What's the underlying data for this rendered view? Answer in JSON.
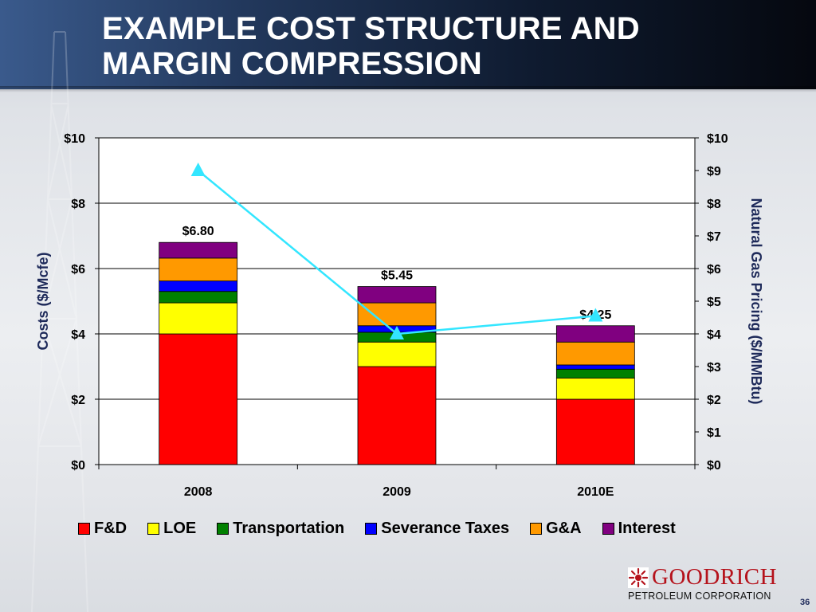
{
  "slide": {
    "title_line1": "EXAMPLE COST STRUCTURE AND",
    "title_line2": "MARGIN COMPRESSION",
    "page_number": "36"
  },
  "logo": {
    "name": "GOODRICH",
    "subtitle": "PETROLEUM CORPORATION",
    "icon": "sun-burst-icon"
  },
  "chart_data": {
    "type": "bar",
    "stacked": true,
    "categories": [
      "2008",
      "2009",
      "2010E"
    ],
    "series": [
      {
        "name": "F&D",
        "color": "#ff0000",
        "values": [
          4.0,
          3.0,
          2.0
        ]
      },
      {
        "name": "LOE",
        "color": "#ffff00",
        "values": [
          0.95,
          0.75,
          0.65
        ]
      },
      {
        "name": "Transportation",
        "color": "#008000",
        "values": [
          0.35,
          0.3,
          0.27
        ]
      },
      {
        "name": "Severance Taxes",
        "color": "#0000ff",
        "values": [
          0.32,
          0.2,
          0.13
        ]
      },
      {
        "name": "G&A",
        "color": "#ff9900",
        "values": [
          0.7,
          0.7,
          0.7
        ]
      },
      {
        "name": "Interest",
        "color": "#800080",
        "values": [
          0.48,
          0.5,
          0.5
        ]
      }
    ],
    "totals_labels": [
      "$6.80",
      "$5.45",
      "$4.25"
    ],
    "line": {
      "color": "#33e6ff",
      "marker": "triangle",
      "values": [
        9.0,
        4.0,
        4.55
      ]
    },
    "ylabel": "Costs ($/Mcfe)",
    "y2label": "Natural Gas Pricing ($/MMBtu)",
    "ylim": [
      0,
      10
    ],
    "y2lim": [
      0,
      10
    ],
    "yticks": [
      "$0",
      "$2",
      "$4",
      "$6",
      "$8",
      "$10"
    ],
    "y2ticks": [
      "$0",
      "$1",
      "$2",
      "$3",
      "$4",
      "$5",
      "$6",
      "$7",
      "$8",
      "$9",
      "$10"
    ],
    "grid": true,
    "legend": "bottom"
  }
}
